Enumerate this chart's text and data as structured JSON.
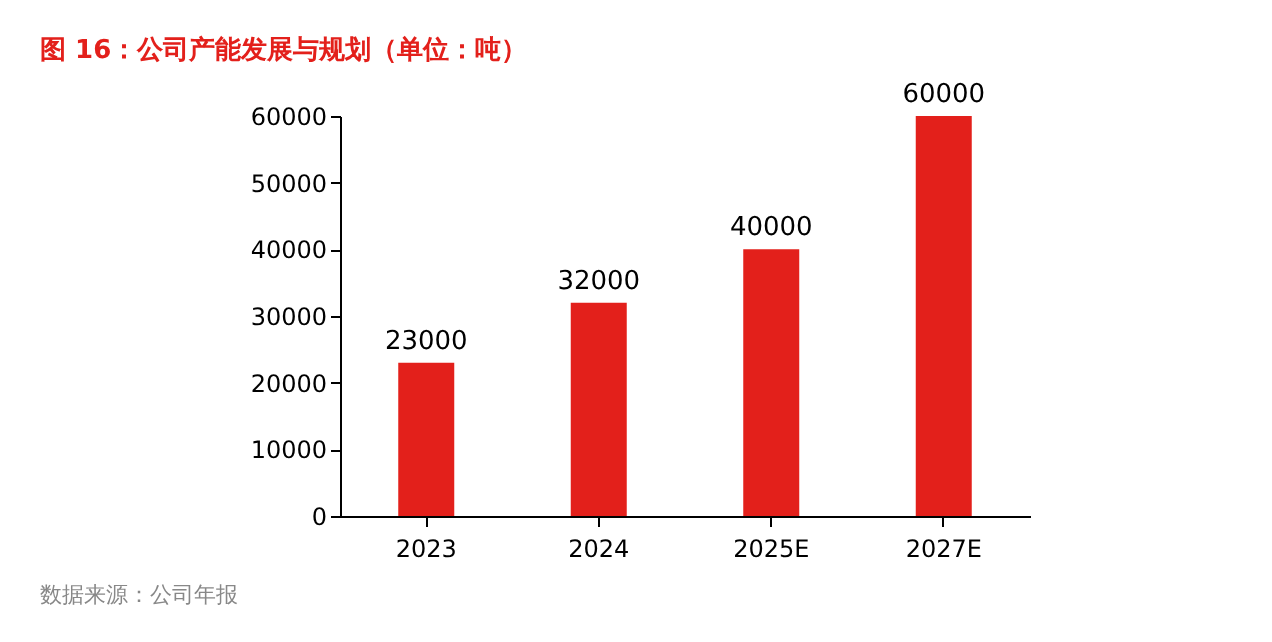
{
  "chart_data": {
    "type": "bar",
    "title": "图 16：公司产能发展与规划（单位：吨）",
    "categories": [
      "2023",
      "2024",
      "2025E",
      "2027E"
    ],
    "values": [
      23000,
      32000,
      40000,
      60000
    ],
    "color": "#e3201b",
    "ylim": [
      0,
      60000
    ],
    "yticks": [
      0,
      10000,
      20000,
      30000,
      40000,
      50000,
      60000
    ],
    "grid": false,
    "data_labels": true,
    "annotations": [
      "数据来源：公司年报"
    ]
  }
}
